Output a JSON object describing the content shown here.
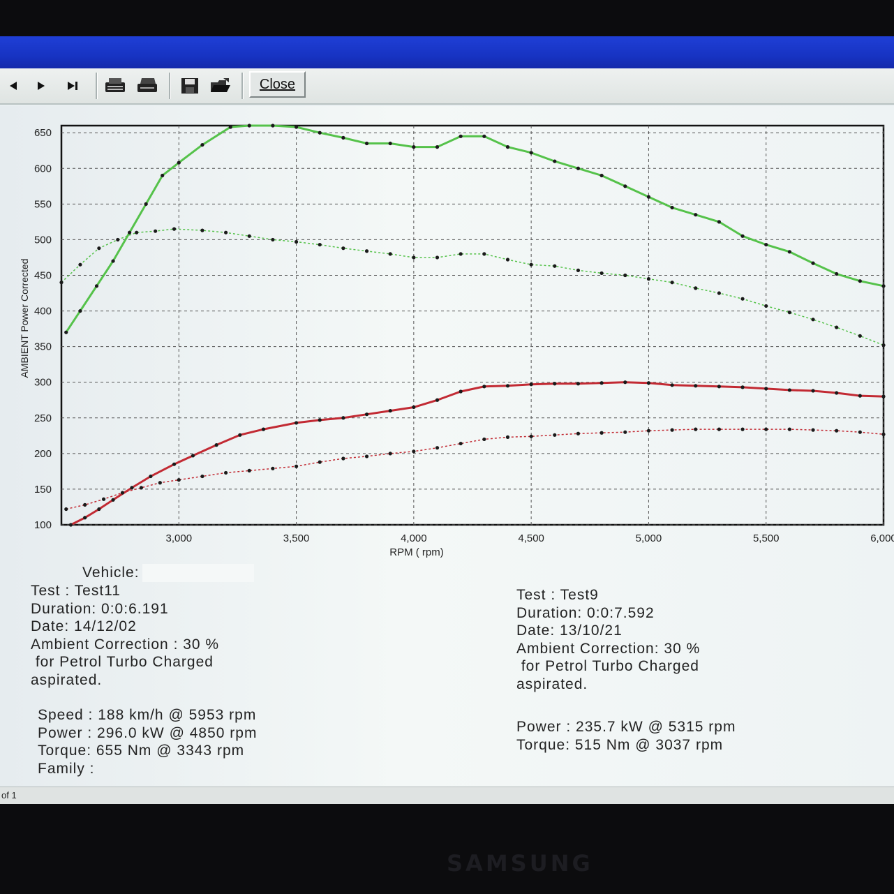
{
  "toolbar": {
    "close_label": "Close",
    "icons": [
      "prev-arrow-icon",
      "next-arrow-icon",
      "last-page-icon",
      "print-setup-icon",
      "print-icon",
      "save-icon",
      "open-folder-icon"
    ]
  },
  "chart_data": {
    "type": "line",
    "ylabel": "AMBIENT Power Corrected",
    "xlabel": "RPM ( rpm)",
    "xlim": [
      2500,
      6000
    ],
    "ylim": [
      100,
      660
    ],
    "x_ticks": [
      3000,
      3500,
      4000,
      4500,
      5000,
      5500,
      6000
    ],
    "x_tick_labels": [
      "3,000",
      "3,500",
      "4,000",
      "4,500",
      "5,000",
      "5,500",
      "6,000"
    ],
    "y_ticks": [
      100,
      150,
      200,
      250,
      300,
      350,
      400,
      450,
      500,
      550,
      600,
      650
    ],
    "grid": true,
    "series": [
      {
        "color": "#55c24a",
        "style": "solid",
        "x": [
          2520,
          2580,
          2650,
          2720,
          2790,
          2860,
          2930,
          3000,
          3100,
          3220,
          3300,
          3400,
          3500,
          3600,
          3700,
          3800,
          3900,
          4000,
          4100,
          4200,
          4300,
          4400,
          4500,
          4600,
          4700,
          4800,
          4900,
          5000,
          5100,
          5200,
          5300,
          5400,
          5500,
          5600,
          5700,
          5800,
          5900,
          6000
        ],
        "values": [
          370,
          400,
          435,
          470,
          510,
          550,
          590,
          608,
          633,
          658,
          660,
          660,
          658,
          650,
          643,
          635,
          635,
          630,
          630,
          645,
          645,
          630,
          622,
          610,
          600,
          590,
          575,
          560,
          545,
          535,
          525,
          505,
          493,
          483,
          467,
          452,
          442,
          435
        ]
      },
      {
        "color": "#55c24a",
        "style": "dotted",
        "x": [
          2500,
          2580,
          2660,
          2740,
          2820,
          2900,
          2980,
          3100,
          3200,
          3300,
          3400,
          3500,
          3600,
          3700,
          3800,
          3900,
          4000,
          4100,
          4200,
          4300,
          4400,
          4500,
          4600,
          4700,
          4800,
          4900,
          5000,
          5100,
          5200,
          5300,
          5400,
          5500,
          5600,
          5700,
          5800,
          5900,
          6000
        ],
        "values": [
          440,
          465,
          488,
          500,
          510,
          512,
          515,
          513,
          510,
          505,
          500,
          497,
          493,
          488,
          484,
          480,
          475,
          475,
          480,
          480,
          472,
          465,
          463,
          457,
          453,
          450,
          445,
          440,
          432,
          425,
          417,
          407,
          398,
          388,
          377,
          365,
          352
        ]
      },
      {
        "color": "#c22a33",
        "style": "solid",
        "x": [
          2540,
          2600,
          2660,
          2720,
          2800,
          2880,
          2980,
          3060,
          3160,
          3260,
          3360,
          3500,
          3600,
          3700,
          3800,
          3900,
          4000,
          4100,
          4200,
          4300,
          4400,
          4500,
          4600,
          4700,
          4800,
          4900,
          5000,
          5100,
          5200,
          5300,
          5400,
          5500,
          5600,
          5700,
          5800,
          5900,
          6000
        ],
        "values": [
          100,
          110,
          122,
          135,
          152,
          168,
          185,
          197,
          212,
          226,
          234,
          243,
          247,
          250,
          255,
          260,
          265,
          275,
          287,
          294,
          295,
          297,
          298,
          298,
          299,
          300,
          299,
          296,
          295,
          294,
          293,
          291,
          289,
          288,
          285,
          281,
          280
        ]
      },
      {
        "color": "#c22a33",
        "style": "dotted",
        "x": [
          2520,
          2600,
          2680,
          2760,
          2840,
          2920,
          3000,
          3100,
          3200,
          3300,
          3400,
          3500,
          3600,
          3700,
          3800,
          3900,
          4000,
          4100,
          4200,
          4300,
          4400,
          4500,
          4600,
          4700,
          4800,
          4900,
          5000,
          5100,
          5200,
          5300,
          5400,
          5500,
          5600,
          5700,
          5800,
          5900,
          6000
        ],
        "values": [
          122,
          128,
          136,
          145,
          152,
          159,
          163,
          168,
          173,
          176,
          179,
          182,
          188,
          193,
          196,
          200,
          203,
          208,
          214,
          220,
          223,
          224,
          226,
          228,
          229,
          230,
          232,
          233,
          234,
          234,
          234,
          234,
          234,
          233,
          232,
          230,
          227
        ]
      }
    ]
  },
  "test11": {
    "vehicle_label": "Vehicle:",
    "test": "Test     : Test11",
    "duration": "Duration: 0:0:6.191",
    "date": "Date: 14/12/02",
    "ambient": "Ambient Correction : 30 %",
    "for_line": " for Petrol Turbo Charged",
    "aspirated": "aspirated.",
    "speed": "Speed : 188 km/h @ 5953 rpm",
    "power": "Power : 296.0 kW @ 4850 rpm",
    "torque": "Torque: 655 Nm @ 3343 rpm",
    "family": "Family :"
  },
  "test9": {
    "test": "Test     : Test9",
    "duration": "Duration: 0:0:7.592",
    "date": "Date: 13/10/21",
    "ambient": "Ambient Correction: 30 %",
    "for_line": " for Petrol Turbo Charged",
    "aspirated": "aspirated.",
    "power": "Power : 235.7 kW @ 5315 rpm",
    "torque": "Torque: 515 Nm @ 3037 rpm"
  },
  "status": {
    "page": "of 1"
  },
  "monitor": {
    "brand": "SAMSUNG"
  }
}
